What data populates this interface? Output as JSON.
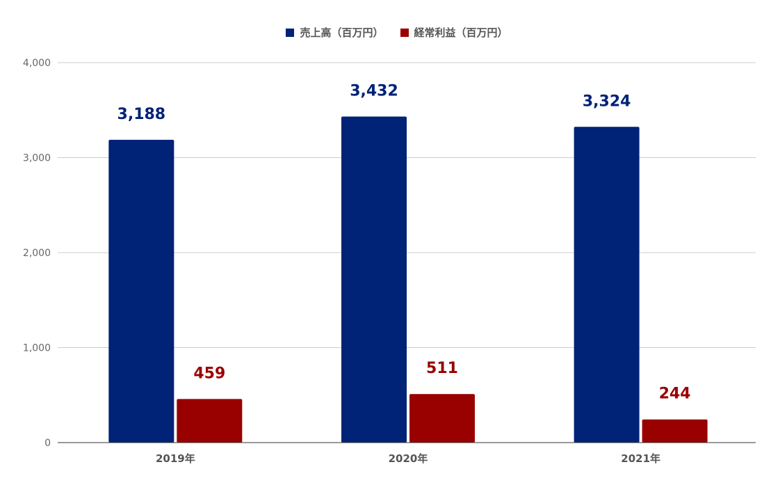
{
  "chart_data": {
    "type": "bar",
    "categories": [
      "2019年",
      "2020年",
      "2021年"
    ],
    "series": [
      {
        "name": "売上高（百万円）",
        "values": [
          3188,
          3432,
          3324
        ],
        "color": "#002277",
        "labels": [
          "3,188",
          "3,432",
          "3,324"
        ]
      },
      {
        "name": "経常利益（百万円）",
        "values": [
          459,
          511,
          244
        ],
        "color": "#990000",
        "labels": [
          "459",
          "511",
          "244"
        ]
      }
    ],
    "title": "",
    "xlabel": "",
    "ylabel": "",
    "ylim": [
      0,
      4000
    ],
    "yticks": [
      0,
      1000,
      2000,
      3000,
      4000
    ],
    "ytick_labels": [
      "0",
      "1,000",
      "2,000",
      "3,000",
      "4,000"
    ],
    "grid": true,
    "legend_position": "top-center"
  }
}
